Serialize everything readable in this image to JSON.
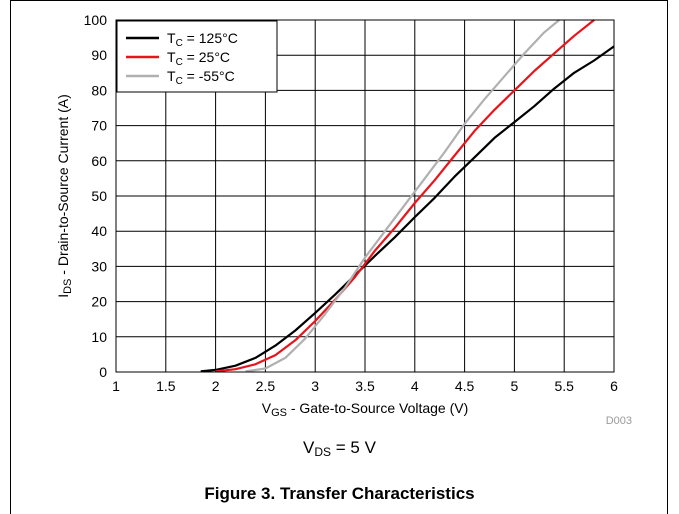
{
  "chart_data": {
    "type": "line",
    "xlabel": "V",
    "xlabel_sub": "GS",
    "xlabel_rest": " - Gate-to-Source Voltage (V)",
    "ylabel": "I",
    "ylabel_sub": "DS",
    "ylabel_rest": " - Drain-to-Source Current (A)",
    "xlim": [
      1,
      6
    ],
    "ylim": [
      0,
      100
    ],
    "xticks": [
      "1",
      "1.5",
      "2",
      "2.5",
      "3",
      "3.5",
      "4",
      "4.5",
      "5",
      "5.5",
      "6"
    ],
    "yticks": [
      "0",
      "10",
      "20",
      "30",
      "40",
      "50",
      "60",
      "70",
      "80",
      "90",
      "100"
    ],
    "grid": true,
    "legend_position": "top-left",
    "watermark": "D003",
    "series": [
      {
        "name": "T",
        "name_sub": "C",
        "name_rest": " = 125°C",
        "color": "#000000",
        "points": [
          [
            1.85,
            0.2
          ],
          [
            2.0,
            0.6
          ],
          [
            2.2,
            1.8
          ],
          [
            2.4,
            4.0
          ],
          [
            2.6,
            7.5
          ],
          [
            2.8,
            11.8
          ],
          [
            3.0,
            16.8
          ],
          [
            3.2,
            22.0
          ],
          [
            3.4,
            27.5
          ],
          [
            3.6,
            33.0
          ],
          [
            3.8,
            38.3
          ],
          [
            4.0,
            44.0
          ],
          [
            4.2,
            49.5
          ],
          [
            4.4,
            55.5
          ],
          [
            4.6,
            61.0
          ],
          [
            4.8,
            66.5
          ],
          [
            5.0,
            71.0
          ],
          [
            5.2,
            75.5
          ],
          [
            5.4,
            80.5
          ],
          [
            5.6,
            85.0
          ],
          [
            5.8,
            88.5
          ],
          [
            6.0,
            92.5
          ]
        ]
      },
      {
        "name": "T",
        "name_sub": "C",
        "name_rest": " = 25°C",
        "color": "#e8141c",
        "points": [
          [
            2.0,
            0.2
          ],
          [
            2.2,
            0.8
          ],
          [
            2.4,
            2.2
          ],
          [
            2.6,
            4.8
          ],
          [
            2.8,
            9.0
          ],
          [
            3.0,
            14.5
          ],
          [
            3.2,
            20.5
          ],
          [
            3.4,
            27.0
          ],
          [
            3.6,
            34.5
          ],
          [
            3.8,
            41.0
          ],
          [
            4.0,
            48.0
          ],
          [
            4.2,
            54.5
          ],
          [
            4.4,
            61.5
          ],
          [
            4.6,
            68.5
          ],
          [
            4.8,
            74.5
          ],
          [
            5.0,
            80.0
          ],
          [
            5.2,
            85.5
          ],
          [
            5.4,
            90.5
          ],
          [
            5.6,
            95.5
          ],
          [
            5.8,
            100.0
          ]
        ]
      },
      {
        "name": "T",
        "name_sub": "C",
        "name_rest": " = -55°C",
        "color": "#b0b0b0",
        "points": [
          [
            2.3,
            0.2
          ],
          [
            2.5,
            1.0
          ],
          [
            2.7,
            4.0
          ],
          [
            2.9,
            9.5
          ],
          [
            3.1,
            16.5
          ],
          [
            3.3,
            24.0
          ],
          [
            3.5,
            32.5
          ],
          [
            3.7,
            40.0
          ],
          [
            3.9,
            47.5
          ],
          [
            4.1,
            55.0
          ],
          [
            4.3,
            62.5
          ],
          [
            4.5,
            70.5
          ],
          [
            4.7,
            77.5
          ],
          [
            4.9,
            84.0
          ],
          [
            5.1,
            90.5
          ],
          [
            5.3,
            96.5
          ],
          [
            5.45,
            100.0
          ]
        ]
      }
    ]
  },
  "captions": {
    "vds_label": "V",
    "vds_sub": "DS",
    "vds_rest": " = 5 V",
    "figure_title": "Figure 3. Transfer Characteristics"
  }
}
